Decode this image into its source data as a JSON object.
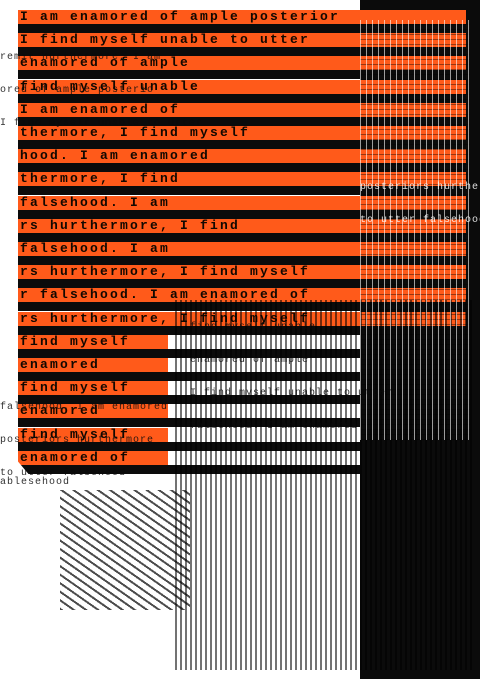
{
  "poster": {
    "phrases": [
      "I am enamored of ample posterior",
      "I find myself unable to utter",
      "enamored of ample",
      "find myself unable",
      "I am enamored of",
      "thermore, I find myself",
      "hood. I am enamored",
      "thermore, I find",
      "falsehood. I am",
      "rs hurthermore, I find",
      "falsehood. I am",
      "rs hurthermore, I find myself",
      "r falsehood. I am enamored of",
      "rs hurthermore, I find myself",
      "find myself",
      "enamored",
      "find myself",
      "enamored",
      "find myself",
      "enamored of"
    ],
    "overlay_lines": [
      "remit hurthermore, I am",
      "ored of ample posterio",
      "I find myself unable to utter",
      "falsehood. I am enamored",
      "posteriors hurthermore",
      "to utter falsehood",
      "find myself unable",
      "enamored of ample",
      "ablesehood"
    ],
    "colors": {
      "orange": "#ff5a1a",
      "black": "#0b0b0b",
      "white": "#ffffff"
    }
  }
}
